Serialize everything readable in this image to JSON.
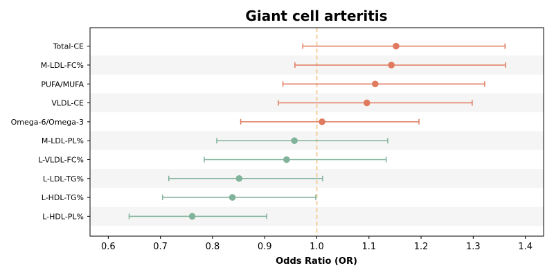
{
  "chart_data": {
    "type": "forest",
    "title": "Giant cell arteritis",
    "xlabel": "Odds Ratio (OR)",
    "xlim": [
      0.565,
      1.435
    ],
    "xticks": [
      0.6,
      0.7,
      0.8,
      0.9,
      1.0,
      1.1,
      1.2,
      1.3,
      1.4
    ],
    "xtick_labels": [
      "0.6",
      "0.7",
      "0.8",
      "0.9",
      "1.0",
      "1.1",
      "1.2",
      "1.3",
      "1.4"
    ],
    "reference_line": 1.0,
    "colors": {
      "positive": "#E07A5F",
      "negative": "#81B29A",
      "reference": "#F2CC8F",
      "band": "#f5f5f5"
    },
    "rows": [
      {
        "label": "Total-CE",
        "or": 1.152,
        "lower": 0.973,
        "upper": 1.361,
        "group": "positive"
      },
      {
        "label": "M-LDL-FC%",
        "or": 1.143,
        "lower": 0.958,
        "upper": 1.362,
        "group": "positive"
      },
      {
        "label": "PUFA/MUFA",
        "or": 1.112,
        "lower": 0.935,
        "upper": 1.322,
        "group": "positive"
      },
      {
        "label": "VLDL-CE",
        "or": 1.096,
        "lower": 0.926,
        "upper": 1.298,
        "group": "positive"
      },
      {
        "label": "Omega-6/Omega-3",
        "or": 1.01,
        "lower": 0.854,
        "upper": 1.196,
        "group": "positive"
      },
      {
        "label": "M-LDL-PL%",
        "or": 0.957,
        "lower": 0.808,
        "upper": 1.136,
        "group": "negative"
      },
      {
        "label": "L-VLDL-FC%",
        "or": 0.942,
        "lower": 0.784,
        "upper": 1.133,
        "group": "negative"
      },
      {
        "label": "L-LDL-TG%",
        "or": 0.851,
        "lower": 0.716,
        "upper": 1.011,
        "group": "negative"
      },
      {
        "label": "L-HDL-TG%",
        "or": 0.838,
        "lower": 0.704,
        "upper": 0.998,
        "group": "negative"
      },
      {
        "label": "L-HDL-PL%",
        "or": 0.761,
        "lower": 0.64,
        "upper": 0.904,
        "group": "negative"
      }
    ]
  }
}
